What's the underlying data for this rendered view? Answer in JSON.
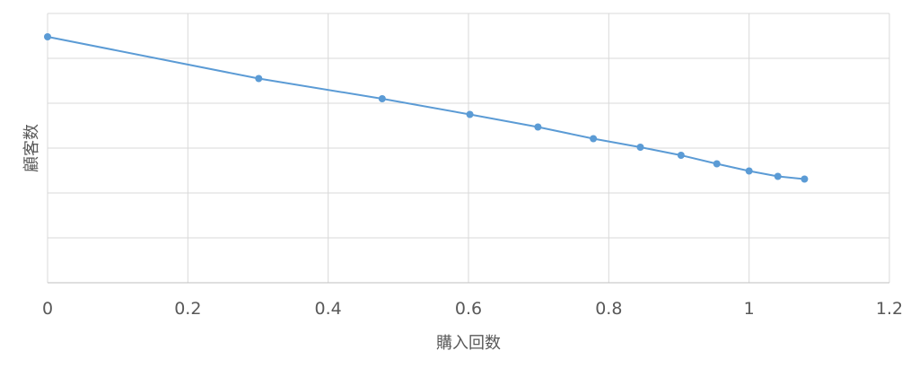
{
  "chart_data": {
    "type": "line",
    "title": "",
    "xlabel": "購入回数",
    "ylabel": "顧客数",
    "xlim": [
      0,
      1.2
    ],
    "ylim": [
      0,
      6
    ],
    "x_ticks": [
      "0",
      "0.2",
      "0.4",
      "0.6",
      "0.8",
      "1",
      "1.2"
    ],
    "y_tick_labels_shown": false,
    "grid": true,
    "legend": "none",
    "series": [
      {
        "color": "#5b9bd5",
        "points": [
          {
            "x": 0,
            "y": 5.48
          },
          {
            "x": 0.301,
            "y": 4.55
          },
          {
            "x": 0.477,
            "y": 4.1
          },
          {
            "x": 0.602,
            "y": 3.75
          },
          {
            "x": 0.699,
            "y": 3.47
          },
          {
            "x": 0.778,
            "y": 3.21
          },
          {
            "x": 0.845,
            "y": 3.02
          },
          {
            "x": 0.903,
            "y": 2.84
          },
          {
            "x": 0.954,
            "y": 2.65
          },
          {
            "x": 1.0,
            "y": 2.49
          },
          {
            "x": 1.041,
            "y": 2.37
          },
          {
            "x": 1.079,
            "y": 2.31
          }
        ]
      }
    ]
  }
}
